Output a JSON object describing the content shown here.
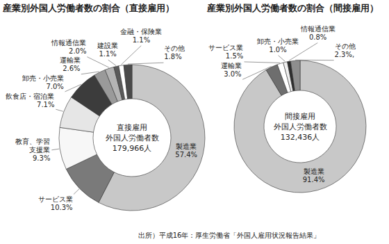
{
  "chart_data": [
    {
      "type": "donut",
      "title": "産業別外国人労働者数の割合（直接雇用）",
      "center_text": [
        "直接雇用",
        "外国人労働者数",
        "179,966人"
      ],
      "categories": [
        "製造業",
        "サービス業",
        "教育、学習支援業",
        "飲食店・宿泊業",
        "卸売・小売業",
        "運輸業",
        "情報通信業",
        "建設業",
        "金融・保険業",
        "その他"
      ],
      "values": [
        57.4,
        10.3,
        9.3,
        7.1,
        7.0,
        2.6,
        2.0,
        1.1,
        1.1,
        1.8
      ],
      "value_labels": [
        "57.4%",
        "10.3%",
        "9.3%",
        "7.1%",
        "7.0%",
        "2.6%",
        "2.0%",
        "1.1%",
        "1.1%",
        "1.8%"
      ],
      "colors": [
        "#c8c8c8",
        "#7a7a7a",
        "#f7f7f7",
        "#e6e6e6",
        "#3c3c3c",
        "#9a9a9a",
        "#b4b4b4",
        "#5a5a5a",
        "#ffffff",
        "#4a4a4a"
      ],
      "data_labels": true
    },
    {
      "type": "donut",
      "title": "産業別外国人労働者数の割合（間接雇用）",
      "center_text": [
        "間接雇用",
        "外国人労働者数",
        "132,436人"
      ],
      "categories": [
        "製造業",
        "運輸業",
        "サービス業",
        "卸売・小売業",
        "情報通信業",
        "その他"
      ],
      "values": [
        91.4,
        3.0,
        1.5,
        1.0,
        0.8,
        2.3
      ],
      "value_labels": [
        "91.4%",
        "3.0%",
        "1.5%",
        "1.0%",
        "0.8%",
        "2.3%,"
      ],
      "colors": [
        "#c8c8c8",
        "#6e6e6e",
        "#ffffff",
        "#efefef",
        "#2e2e2e",
        "#8e8e8e"
      ],
      "data_labels": true
    }
  ],
  "source": "出所）平成16年：厚生労働省「外国人雇用状況報告結果」"
}
